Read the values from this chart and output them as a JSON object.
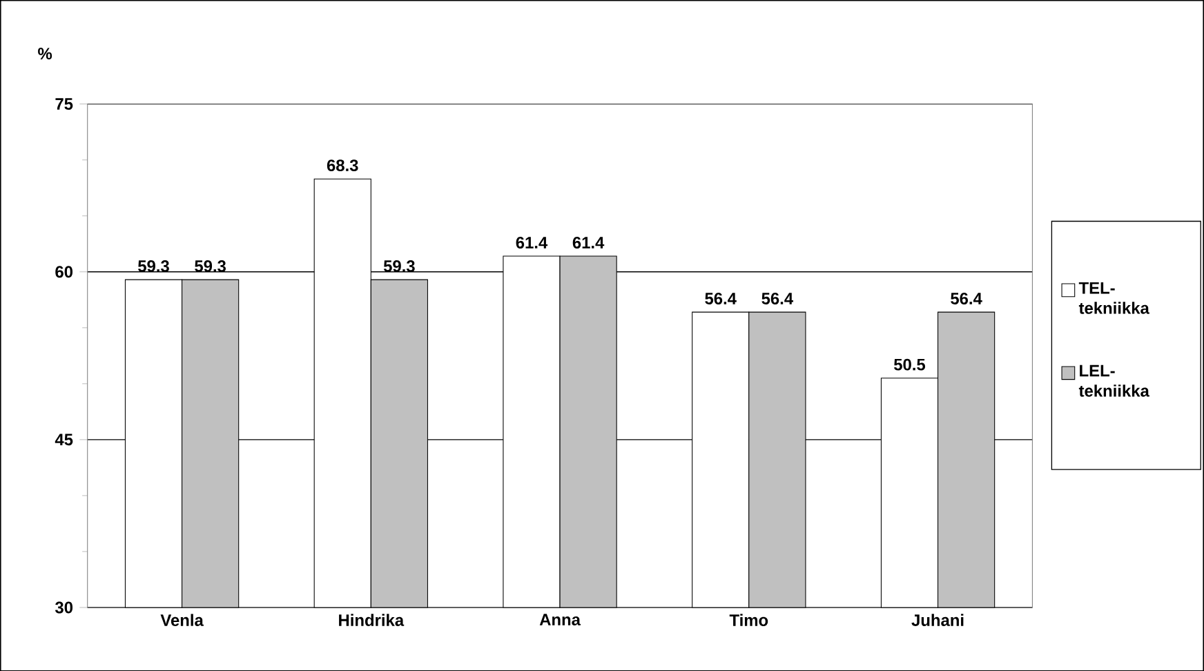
{
  "chart_data": {
    "type": "bar",
    "ylabel": "%",
    "categories": [
      "Venla",
      "Hindrika",
      "Anna",
      "Timo",
      "Juhani"
    ],
    "series": [
      {
        "name": "TEL-tekniikka",
        "color": "#ffffff",
        "values": [
          59.3,
          68.3,
          61.4,
          56.4,
          50.5
        ]
      },
      {
        "name": "LEL-tekniikka",
        "color": "#c0c0c0",
        "values": [
          59.3,
          59.3,
          61.4,
          56.4,
          56.4
        ]
      }
    ],
    "ylim": [
      30,
      75
    ],
    "yticks": [
      30,
      45,
      60,
      75
    ],
    "grid": "y",
    "legend": "right",
    "data_labels": true
  }
}
